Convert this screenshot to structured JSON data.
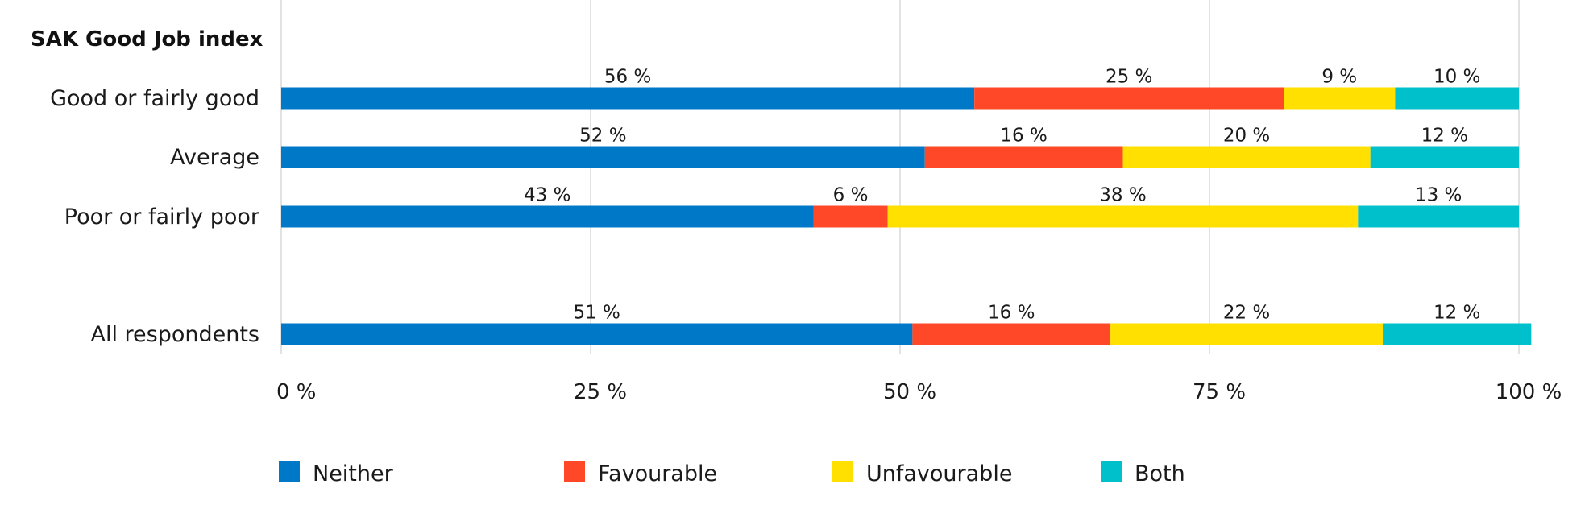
{
  "chart_data": {
    "type": "bar",
    "orientation": "horizontal",
    "stacked": true,
    "group_title": "SAK Good Job index",
    "categories": [
      "Good or fairly good",
      "Average",
      "Poor or fairly poor",
      "All respondents"
    ],
    "series": [
      {
        "name": "Neither",
        "color": "#0078c8",
        "values": [
          56,
          52,
          43,
          51
        ]
      },
      {
        "name": "Favourable",
        "color": "#ff4828",
        "values": [
          25,
          16,
          6,
          16
        ]
      },
      {
        "name": "Unfavourable",
        "color": "#ffe000",
        "values": [
          9,
          20,
          38,
          22
        ]
      },
      {
        "name": "Both",
        "color": "#00c0cc",
        "values": [
          10,
          12,
          13,
          12
        ]
      }
    ],
    "value_suffix": " %",
    "xlim": [
      0,
      100
    ],
    "x_ticks": [
      0,
      25,
      50,
      75,
      100
    ],
    "x_tick_labels": [
      "0 %",
      "25 %",
      "50 %",
      "75 %",
      "100 %"
    ],
    "grid": "vertical",
    "legend": {
      "position": "bottom-left"
    }
  }
}
